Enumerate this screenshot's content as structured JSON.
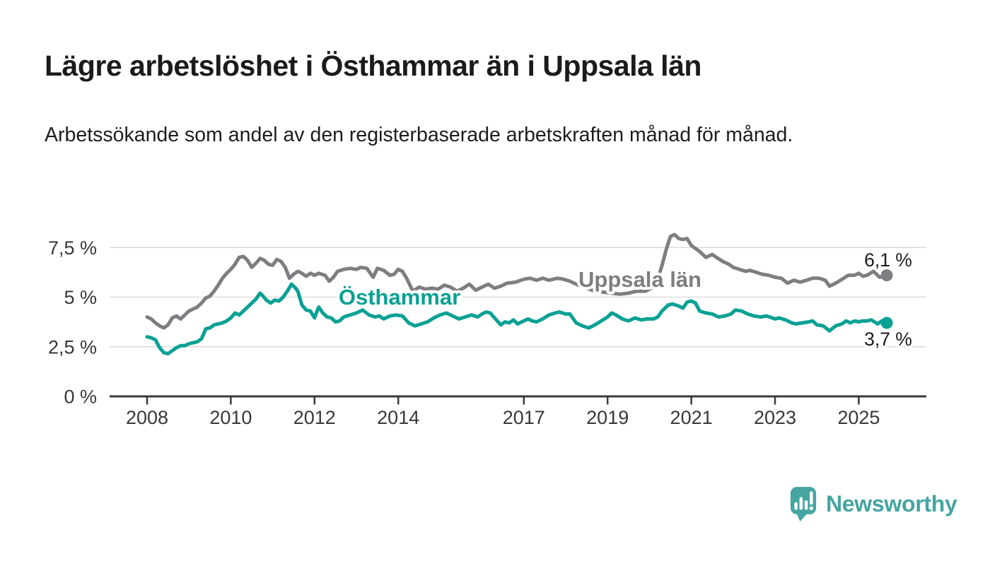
{
  "header": {
    "title": "Lägre arbetslöshet i Östhammar än i Uppsala län",
    "subtitle": "Arbetssökande som andel av den registerbaserade arbetskraften månad för månad."
  },
  "chart_data": {
    "type": "line",
    "title": "Lägre arbetslöshet i Östhammar än i Uppsala län",
    "xlabel": "",
    "ylabel": "",
    "grid": true,
    "x_range": [
      2007.1,
      2026.65
    ],
    "y_range": [
      0,
      8.6
    ],
    "x_ticks": [
      {
        "value": 2008,
        "label": "2008"
      },
      {
        "value": 2010,
        "label": "2010"
      },
      {
        "value": 2012,
        "label": "2012"
      },
      {
        "value": 2014,
        "label": "2014"
      },
      {
        "value": 2017,
        "label": "2017"
      },
      {
        "value": 2019,
        "label": "2019"
      },
      {
        "value": 2021,
        "label": "2021"
      },
      {
        "value": 2023,
        "label": "2023"
      },
      {
        "value": 2025,
        "label": "2025"
      }
    ],
    "y_ticks": [
      {
        "value": 0,
        "label": "0 %"
      },
      {
        "value": 2.5,
        "label": "2,5 %"
      },
      {
        "value": 5,
        "label": "5 %"
      },
      {
        "value": 7.5,
        "label": "7,5 %"
      }
    ],
    "colors": {
      "grid": "#dcdcdc",
      "axis": "#3a3a3a",
      "tick_text": "#383838",
      "end_label_text": "#1b1b1b"
    },
    "series": [
      {
        "name": "Uppsala län",
        "color": "#7e7e82",
        "end_label": "6,1 %",
        "end_value": 6.1,
        "points": [
          [
            2008.0,
            4.0
          ],
          [
            2008.1,
            3.9
          ],
          [
            2008.2,
            3.7
          ],
          [
            2008.3,
            3.55
          ],
          [
            2008.4,
            3.45
          ],
          [
            2008.5,
            3.6
          ],
          [
            2008.6,
            3.95
          ],
          [
            2008.7,
            4.05
          ],
          [
            2008.8,
            3.9
          ],
          [
            2008.9,
            4.1
          ],
          [
            2009.0,
            4.3
          ],
          [
            2009.1,
            4.4
          ],
          [
            2009.2,
            4.5
          ],
          [
            2009.3,
            4.7
          ],
          [
            2009.4,
            4.95
          ],
          [
            2009.5,
            5.05
          ],
          [
            2009.6,
            5.3
          ],
          [
            2009.7,
            5.6
          ],
          [
            2009.8,
            5.95
          ],
          [
            2009.9,
            6.2
          ],
          [
            2010.0,
            6.4
          ],
          [
            2010.1,
            6.65
          ],
          [
            2010.2,
            7.0
          ],
          [
            2010.3,
            7.05
          ],
          [
            2010.4,
            6.85
          ],
          [
            2010.5,
            6.5
          ],
          [
            2010.6,
            6.7
          ],
          [
            2010.7,
            6.95
          ],
          [
            2010.8,
            6.85
          ],
          [
            2010.9,
            6.65
          ],
          [
            2011.0,
            6.6
          ],
          [
            2011.1,
            6.9
          ],
          [
            2011.2,
            6.8
          ],
          [
            2011.3,
            6.5
          ],
          [
            2011.4,
            5.95
          ],
          [
            2011.5,
            6.15
          ],
          [
            2011.6,
            6.3
          ],
          [
            2011.7,
            6.2
          ],
          [
            2011.8,
            6.05
          ],
          [
            2011.9,
            6.2
          ],
          [
            2012.0,
            6.1
          ],
          [
            2012.1,
            6.2
          ],
          [
            2012.25,
            6.1
          ],
          [
            2012.35,
            5.8
          ],
          [
            2012.45,
            6.0
          ],
          [
            2012.55,
            6.3
          ],
          [
            2012.7,
            6.4
          ],
          [
            2012.85,
            6.45
          ],
          [
            2013.0,
            6.4
          ],
          [
            2013.1,
            6.5
          ],
          [
            2013.25,
            6.45
          ],
          [
            2013.4,
            6.0
          ],
          [
            2013.5,
            6.45
          ],
          [
            2013.65,
            6.35
          ],
          [
            2013.8,
            6.1
          ],
          [
            2013.9,
            6.15
          ],
          [
            2014.0,
            6.4
          ],
          [
            2014.1,
            6.3
          ],
          [
            2014.2,
            5.95
          ],
          [
            2014.35,
            5.3
          ],
          [
            2014.5,
            5.5
          ],
          [
            2014.65,
            5.4
          ],
          [
            2014.8,
            5.45
          ],
          [
            2014.95,
            5.4
          ],
          [
            2015.1,
            5.6
          ],
          [
            2015.25,
            5.5
          ],
          [
            2015.4,
            5.3
          ],
          [
            2015.55,
            5.45
          ],
          [
            2015.7,
            5.65
          ],
          [
            2015.85,
            5.35
          ],
          [
            2016.0,
            5.5
          ],
          [
            2016.15,
            5.65
          ],
          [
            2016.3,
            5.45
          ],
          [
            2016.45,
            5.55
          ],
          [
            2016.6,
            5.7
          ],
          [
            2016.8,
            5.75
          ],
          [
            2017.0,
            5.9
          ],
          [
            2017.15,
            5.95
          ],
          [
            2017.3,
            5.85
          ],
          [
            2017.45,
            5.95
          ],
          [
            2017.6,
            5.85
          ],
          [
            2017.8,
            5.95
          ],
          [
            2017.95,
            5.9
          ],
          [
            2018.1,
            5.8
          ],
          [
            2018.3,
            5.6
          ],
          [
            2018.5,
            5.45
          ],
          [
            2018.7,
            5.3
          ],
          [
            2018.9,
            5.25
          ],
          [
            2019.1,
            5.2
          ],
          [
            2019.3,
            5.15
          ],
          [
            2019.5,
            5.2
          ],
          [
            2019.7,
            5.3
          ],
          [
            2019.9,
            5.3
          ],
          [
            2020.1,
            5.5
          ],
          [
            2020.2,
            5.9
          ],
          [
            2020.3,
            6.6
          ],
          [
            2020.4,
            7.4
          ],
          [
            2020.5,
            8.05
          ],
          [
            2020.6,
            8.15
          ],
          [
            2020.7,
            7.95
          ],
          [
            2020.8,
            7.9
          ],
          [
            2020.9,
            7.95
          ],
          [
            2021.0,
            7.6
          ],
          [
            2021.1,
            7.45
          ],
          [
            2021.2,
            7.3
          ],
          [
            2021.35,
            7.0
          ],
          [
            2021.5,
            7.15
          ],
          [
            2021.6,
            7.0
          ],
          [
            2021.75,
            6.8
          ],
          [
            2021.9,
            6.65
          ],
          [
            2022.0,
            6.5
          ],
          [
            2022.15,
            6.4
          ],
          [
            2022.3,
            6.3
          ],
          [
            2022.4,
            6.35
          ],
          [
            2022.55,
            6.25
          ],
          [
            2022.7,
            6.15
          ],
          [
            2022.85,
            6.1
          ],
          [
            2023.0,
            6.0
          ],
          [
            2023.15,
            5.95
          ],
          [
            2023.3,
            5.7
          ],
          [
            2023.45,
            5.85
          ],
          [
            2023.6,
            5.75
          ],
          [
            2023.75,
            5.85
          ],
          [
            2023.9,
            5.95
          ],
          [
            2024.05,
            5.95
          ],
          [
            2024.2,
            5.85
          ],
          [
            2024.3,
            5.55
          ],
          [
            2024.45,
            5.7
          ],
          [
            2024.6,
            5.9
          ],
          [
            2024.75,
            6.1
          ],
          [
            2024.9,
            6.1
          ],
          [
            2025.0,
            6.2
          ],
          [
            2025.1,
            6.05
          ],
          [
            2025.2,
            6.1
          ],
          [
            2025.35,
            6.3
          ],
          [
            2025.5,
            6.0
          ],
          [
            2025.6,
            6.05
          ],
          [
            2025.67,
            6.1
          ]
        ]
      },
      {
        "name": "Östhammar",
        "color": "#0aa193",
        "end_label": "3,7 %",
        "end_value": 3.7,
        "points": [
          [
            2008.0,
            3.0
          ],
          [
            2008.1,
            2.95
          ],
          [
            2008.2,
            2.85
          ],
          [
            2008.3,
            2.45
          ],
          [
            2008.4,
            2.2
          ],
          [
            2008.5,
            2.15
          ],
          [
            2008.6,
            2.3
          ],
          [
            2008.7,
            2.45
          ],
          [
            2008.8,
            2.55
          ],
          [
            2008.9,
            2.55
          ],
          [
            2009.0,
            2.65
          ],
          [
            2009.1,
            2.7
          ],
          [
            2009.2,
            2.75
          ],
          [
            2009.3,
            2.9
          ],
          [
            2009.4,
            3.4
          ],
          [
            2009.5,
            3.45
          ],
          [
            2009.6,
            3.6
          ],
          [
            2009.7,
            3.65
          ],
          [
            2009.8,
            3.7
          ],
          [
            2009.9,
            3.8
          ],
          [
            2010.0,
            3.95
          ],
          [
            2010.1,
            4.2
          ],
          [
            2010.2,
            4.1
          ],
          [
            2010.3,
            4.3
          ],
          [
            2010.4,
            4.5
          ],
          [
            2010.5,
            4.7
          ],
          [
            2010.6,
            4.9
          ],
          [
            2010.7,
            5.2
          ],
          [
            2010.75,
            5.1
          ],
          [
            2010.85,
            4.85
          ],
          [
            2010.95,
            4.7
          ],
          [
            2011.05,
            4.85
          ],
          [
            2011.15,
            4.8
          ],
          [
            2011.25,
            5.0
          ],
          [
            2011.35,
            5.3
          ],
          [
            2011.45,
            5.65
          ],
          [
            2011.55,
            5.45
          ],
          [
            2011.6,
            5.3
          ],
          [
            2011.7,
            4.6
          ],
          [
            2011.8,
            4.35
          ],
          [
            2011.9,
            4.3
          ],
          [
            2012.0,
            3.95
          ],
          [
            2012.05,
            4.25
          ],
          [
            2012.1,
            4.5
          ],
          [
            2012.2,
            4.2
          ],
          [
            2012.3,
            4.0
          ],
          [
            2012.4,
            3.95
          ],
          [
            2012.5,
            3.75
          ],
          [
            2012.6,
            3.8
          ],
          [
            2012.7,
            4.0
          ],
          [
            2012.85,
            4.1
          ],
          [
            2013.0,
            4.2
          ],
          [
            2013.15,
            4.35
          ],
          [
            2013.3,
            4.1
          ],
          [
            2013.45,
            4.0
          ],
          [
            2013.55,
            4.05
          ],
          [
            2013.65,
            3.9
          ],
          [
            2013.8,
            4.05
          ],
          [
            2013.95,
            4.1
          ],
          [
            2014.1,
            4.05
          ],
          [
            2014.25,
            3.7
          ],
          [
            2014.4,
            3.55
          ],
          [
            2014.55,
            3.65
          ],
          [
            2014.7,
            3.75
          ],
          [
            2014.85,
            3.95
          ],
          [
            2015.0,
            4.1
          ],
          [
            2015.15,
            4.2
          ],
          [
            2015.3,
            4.05
          ],
          [
            2015.45,
            3.9
          ],
          [
            2015.6,
            4.0
          ],
          [
            2015.75,
            4.1
          ],
          [
            2015.9,
            4.0
          ],
          [
            2016.0,
            4.15
          ],
          [
            2016.1,
            4.25
          ],
          [
            2016.2,
            4.2
          ],
          [
            2016.3,
            3.95
          ],
          [
            2016.45,
            3.6
          ],
          [
            2016.55,
            3.75
          ],
          [
            2016.65,
            3.7
          ],
          [
            2016.75,
            3.85
          ],
          [
            2016.85,
            3.65
          ],
          [
            2016.95,
            3.75
          ],
          [
            2017.1,
            3.9
          ],
          [
            2017.2,
            3.8
          ],
          [
            2017.3,
            3.75
          ],
          [
            2017.45,
            3.9
          ],
          [
            2017.6,
            4.1
          ],
          [
            2017.75,
            4.2
          ],
          [
            2017.85,
            4.25
          ],
          [
            2018.0,
            4.15
          ],
          [
            2018.1,
            4.15
          ],
          [
            2018.25,
            3.7
          ],
          [
            2018.4,
            3.55
          ],
          [
            2018.55,
            3.45
          ],
          [
            2018.7,
            3.6
          ],
          [
            2018.85,
            3.8
          ],
          [
            2019.0,
            4.0
          ],
          [
            2019.1,
            4.2
          ],
          [
            2019.2,
            4.1
          ],
          [
            2019.35,
            3.9
          ],
          [
            2019.5,
            3.8
          ],
          [
            2019.65,
            3.95
          ],
          [
            2019.8,
            3.85
          ],
          [
            2019.95,
            3.9
          ],
          [
            2020.1,
            3.9
          ],
          [
            2020.2,
            4.0
          ],
          [
            2020.3,
            4.3
          ],
          [
            2020.45,
            4.6
          ],
          [
            2020.55,
            4.65
          ],
          [
            2020.7,
            4.55
          ],
          [
            2020.8,
            4.45
          ],
          [
            2020.9,
            4.75
          ],
          [
            2021.0,
            4.8
          ],
          [
            2021.1,
            4.7
          ],
          [
            2021.2,
            4.3
          ],
          [
            2021.35,
            4.2
          ],
          [
            2021.5,
            4.15
          ],
          [
            2021.65,
            4.0
          ],
          [
            2021.8,
            4.05
          ],
          [
            2021.95,
            4.15
          ],
          [
            2022.05,
            4.35
          ],
          [
            2022.2,
            4.3
          ],
          [
            2022.35,
            4.15
          ],
          [
            2022.5,
            4.05
          ],
          [
            2022.65,
            4.0
          ],
          [
            2022.8,
            4.05
          ],
          [
            2023.0,
            3.9
          ],
          [
            2023.1,
            3.95
          ],
          [
            2023.25,
            3.85
          ],
          [
            2023.4,
            3.7
          ],
          [
            2023.5,
            3.65
          ],
          [
            2023.65,
            3.7
          ],
          [
            2023.8,
            3.75
          ],
          [
            2023.9,
            3.8
          ],
          [
            2024.0,
            3.6
          ],
          [
            2024.15,
            3.55
          ],
          [
            2024.3,
            3.3
          ],
          [
            2024.45,
            3.55
          ],
          [
            2024.6,
            3.65
          ],
          [
            2024.7,
            3.8
          ],
          [
            2024.8,
            3.7
          ],
          [
            2024.9,
            3.8
          ],
          [
            2025.0,
            3.75
          ],
          [
            2025.1,
            3.8
          ],
          [
            2025.2,
            3.8
          ],
          [
            2025.3,
            3.85
          ],
          [
            2025.45,
            3.65
          ],
          [
            2025.55,
            3.8
          ],
          [
            2025.67,
            3.7
          ]
        ]
      }
    ],
    "legend_position": "inline-labels"
  },
  "footer": {
    "brand": "Newsworthy",
    "brand_color": "#45a5a0",
    "logo_icon": "speech-bubble-bar-chart-exclamation-icon"
  }
}
